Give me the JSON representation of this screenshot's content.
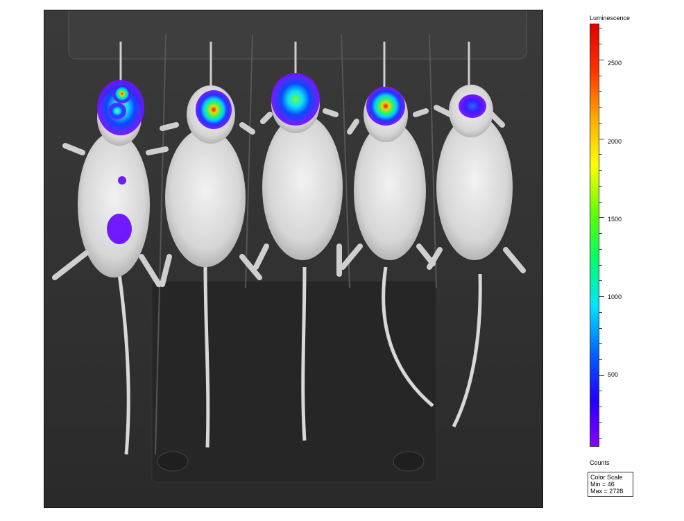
{
  "colorbar": {
    "title": "Luminescence",
    "units": "Counts",
    "gradient": [
      "#8a00ff",
      "#2000ff",
      "#0066ff",
      "#00e5ff",
      "#00ff66",
      "#66ff00",
      "#ffff00",
      "#ffaa00",
      "#ff3300",
      "#e00000"
    ],
    "ticks": [
      "500",
      "1000",
      "1500",
      "2000",
      "2500"
    ],
    "min_value": 46,
    "max_value": 2728
  },
  "scale_box": {
    "title": "Color Scale",
    "min": "Min = 46",
    "max": "Max = 2728"
  },
  "image": {
    "subject_count": 5,
    "background": "#2b2b2b"
  }
}
